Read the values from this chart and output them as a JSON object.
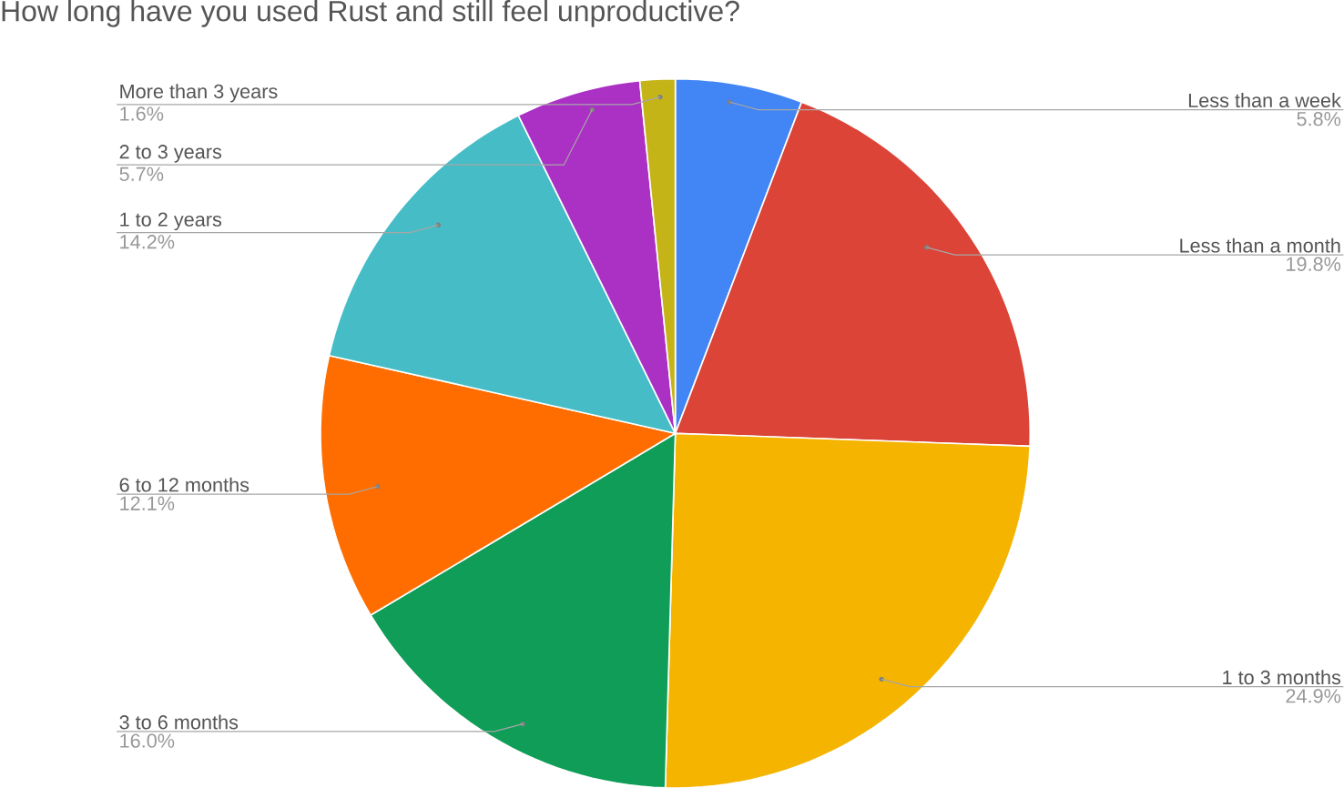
{
  "chart_data": {
    "type": "pie",
    "title": "How long have you used Rust and still feel unproductive?",
    "categories": [
      "Less than a week",
      "Less than a month",
      "1 to 3 months",
      "3 to 6 months",
      "6 to 12 months",
      "1 to 2 years",
      "2 to 3 years",
      "More than 3 years"
    ],
    "values": [
      5.8,
      19.8,
      24.9,
      16.0,
      12.1,
      14.2,
      5.7,
      1.6
    ],
    "value_labels": [
      "5.8%",
      "19.8%",
      "24.9%",
      "16.0%",
      "12.1%",
      "14.2%",
      "5.7%",
      "1.6%"
    ],
    "colors": [
      "#4285f4",
      "#db4437",
      "#f4b400",
      "#0f9d58",
      "#ff6d00",
      "#46bdc6",
      "#ab30c4",
      "#c5b418"
    ]
  }
}
